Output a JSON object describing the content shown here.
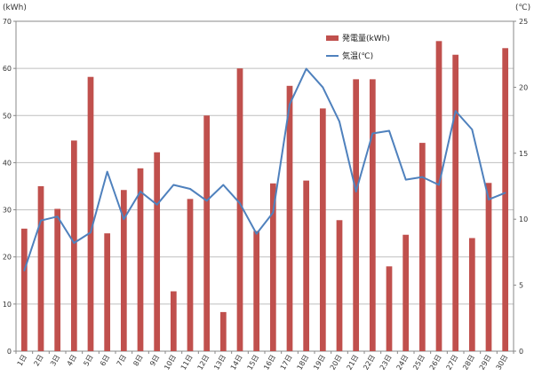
{
  "chart_data": {
    "type": "bar+line",
    "categories": [
      "1日",
      "2日",
      "3日",
      "4日",
      "5日",
      "6日",
      "7日",
      "8日",
      "9日",
      "10日",
      "11日",
      "12日",
      "13日",
      "14日",
      "15日",
      "16日",
      "17日",
      "18日",
      "19日",
      "20日",
      "21日",
      "22日",
      "23日",
      "24日",
      "25日",
      "26日",
      "27日",
      "28日",
      "29日",
      "30日"
    ],
    "series": [
      {
        "name": "発電量(kWh)",
        "type": "bar",
        "axis": "left",
        "color": "#C0504D",
        "values": [
          26,
          35,
          30.2,
          44.7,
          58.2,
          25,
          34.2,
          38.8,
          42.2,
          12.7,
          32.3,
          50,
          8.3,
          60,
          25.5,
          35.6,
          56.3,
          36.2,
          51.5,
          27.8,
          57.7,
          57.7,
          18,
          24.7,
          44.2,
          65.8,
          62.9,
          24,
          35.7,
          64.3
        ]
      },
      {
        "name": "気温(℃)",
        "type": "line",
        "axis": "right",
        "color": "#4F81BD",
        "values": [
          6.1,
          9.9,
          10.2,
          8.2,
          9,
          13.6,
          10,
          12.1,
          11.1,
          12.6,
          12.3,
          11.4,
          12.6,
          11.2,
          8.9,
          10.5,
          18.7,
          21.4,
          20,
          17.4,
          12.1,
          16.5,
          16.7,
          13,
          13.2,
          12.6,
          18.2,
          16.8,
          11.5,
          12
        ]
      }
    ],
    "left_axis": {
      "unit": "(kWh)",
      "min": 0,
      "max": 70,
      "step": 10
    },
    "right_axis": {
      "unit": "(℃)",
      "min": 0,
      "max": 25,
      "step": 5
    },
    "legend": {
      "position": "top-center"
    },
    "grid": true
  }
}
